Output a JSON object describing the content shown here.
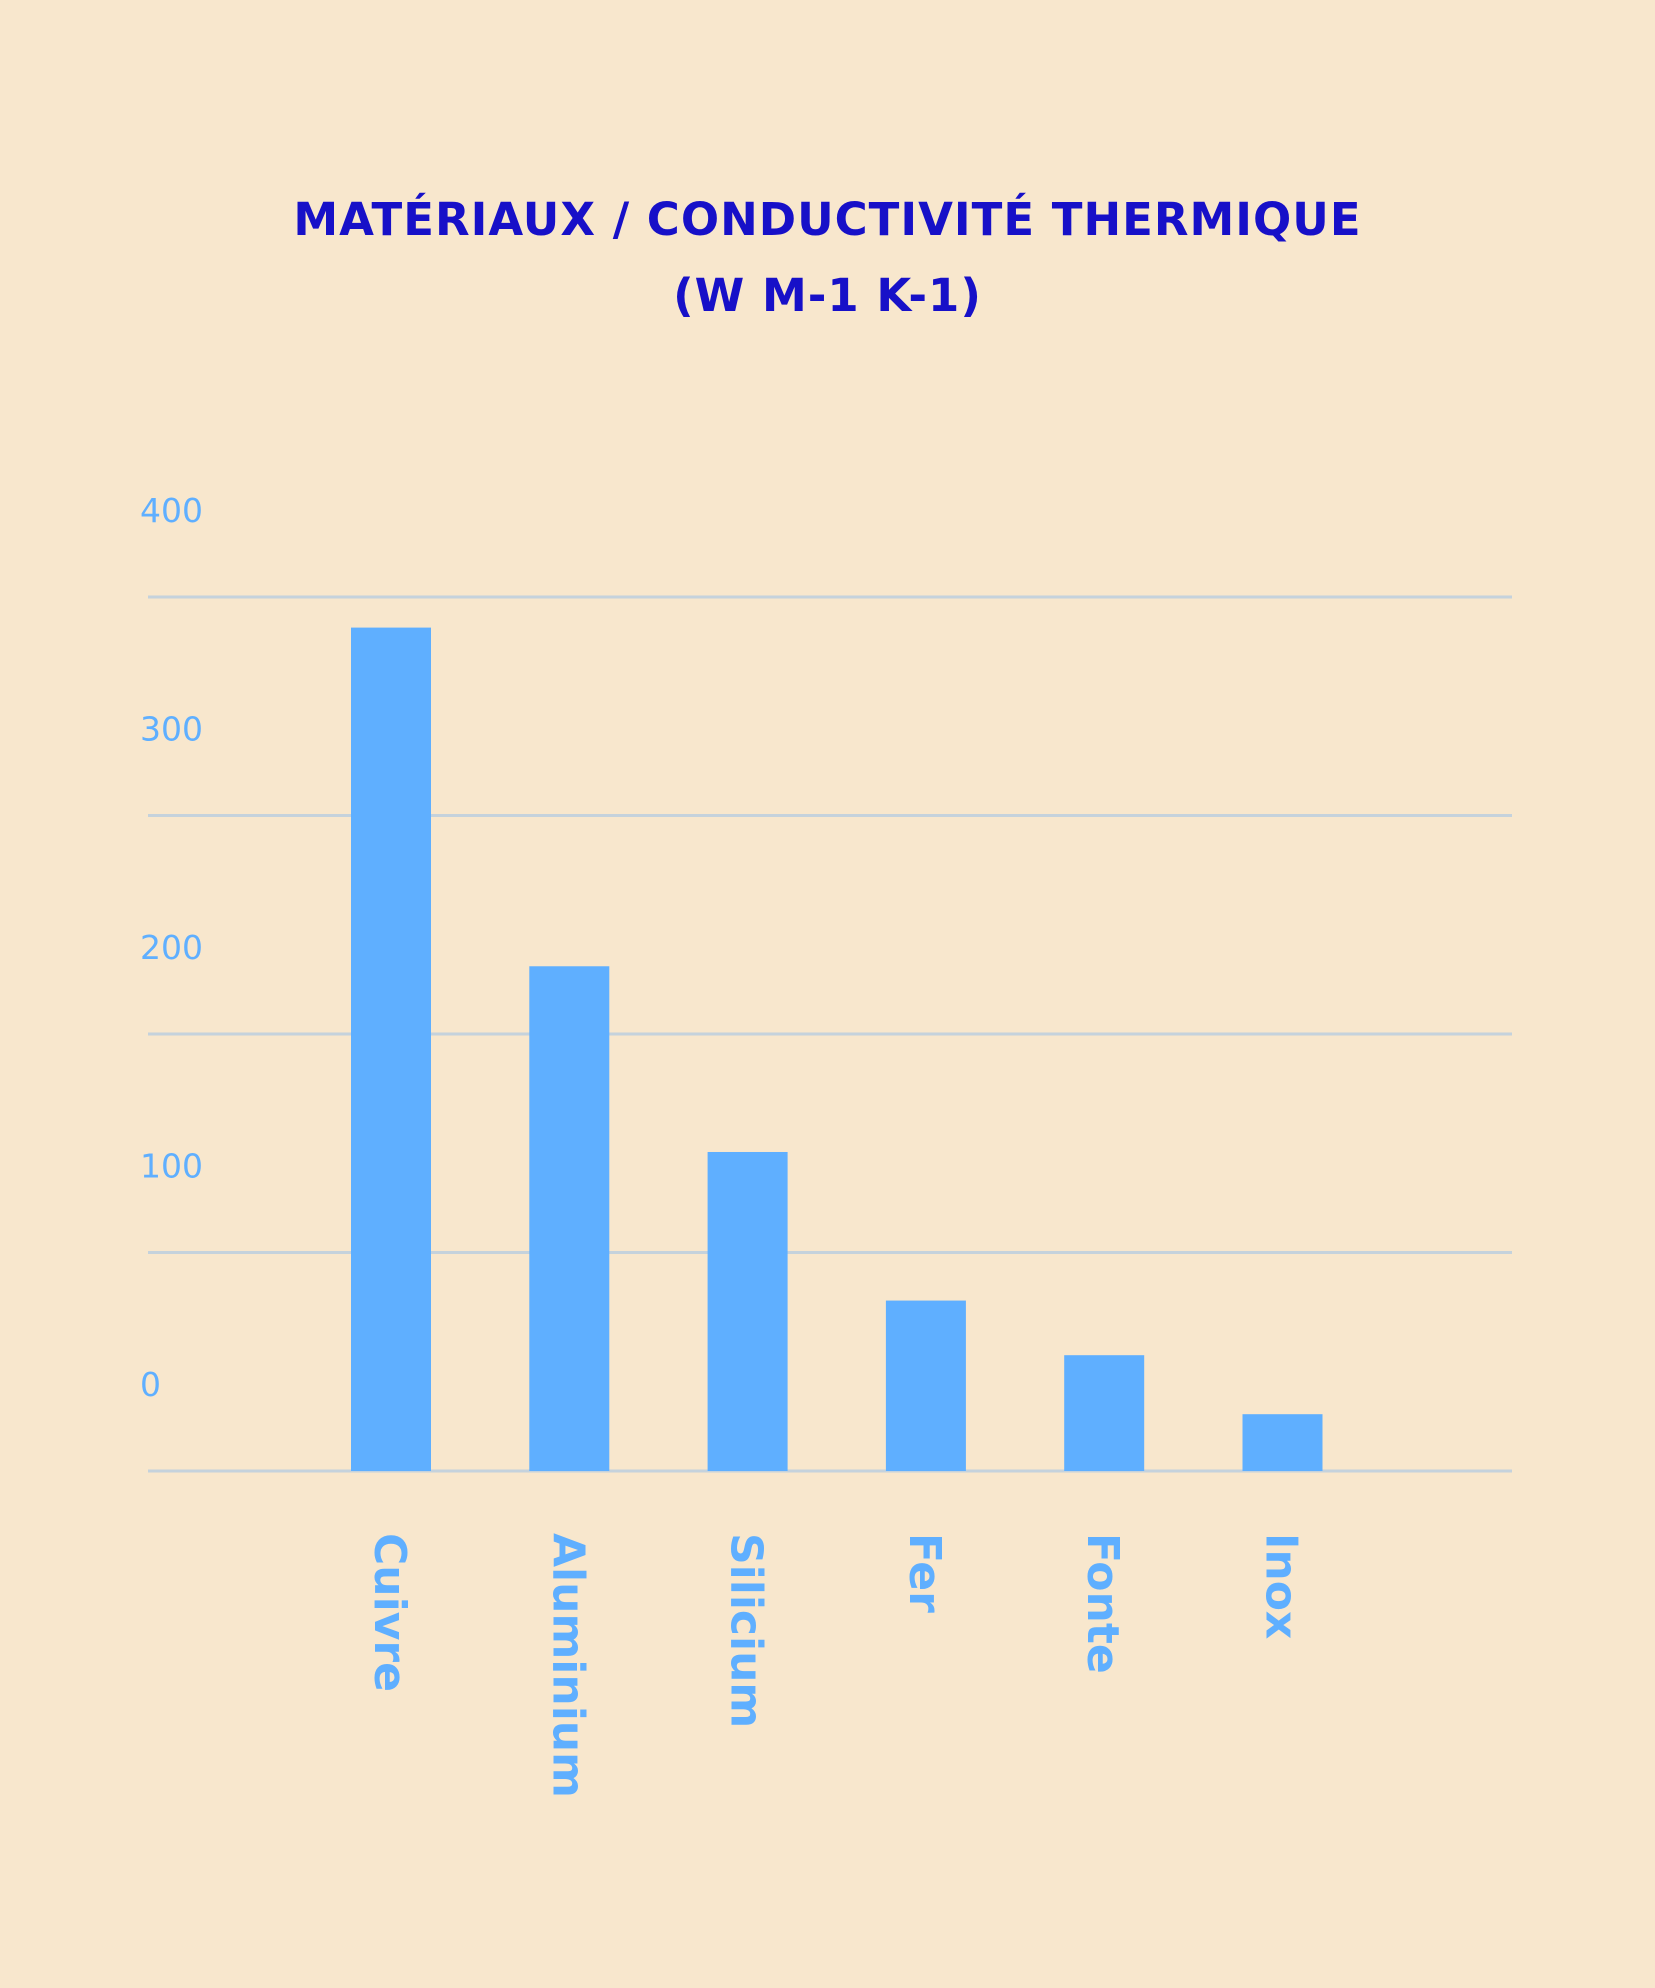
{
  "title": "MATÉRIAUX / CONDUCTIVITÉ THERMIQUE",
  "subtitle": "(W M-1 K-1)",
  "colors": {
    "background": "#F8E7CD",
    "title": "#1710C8",
    "bar": "#5FAFFF",
    "label": "#5FAFFF",
    "grid": "#C5D2DC"
  },
  "chart_data": {
    "type": "bar",
    "title": "MATÉRIAUX / CONDUCTIVITÉ THERMIQUE",
    "subtitle": "(W M-1 K-1)",
    "categories": [
      "Cuivre",
      "Aluminium",
      "Silicium",
      "Fer",
      "Fonte",
      "Inox"
    ],
    "values": [
      386,
      231,
      146,
      78,
      53,
      26
    ],
    "ylim": [
      0,
      400
    ],
    "yticks": [
      0,
      100,
      200,
      300,
      400
    ],
    "ytick_labels": [
      "0",
      "100",
      "200",
      "300",
      "400"
    ],
    "grid": true,
    "legend": "none",
    "category_label_orientation": "vertical"
  }
}
